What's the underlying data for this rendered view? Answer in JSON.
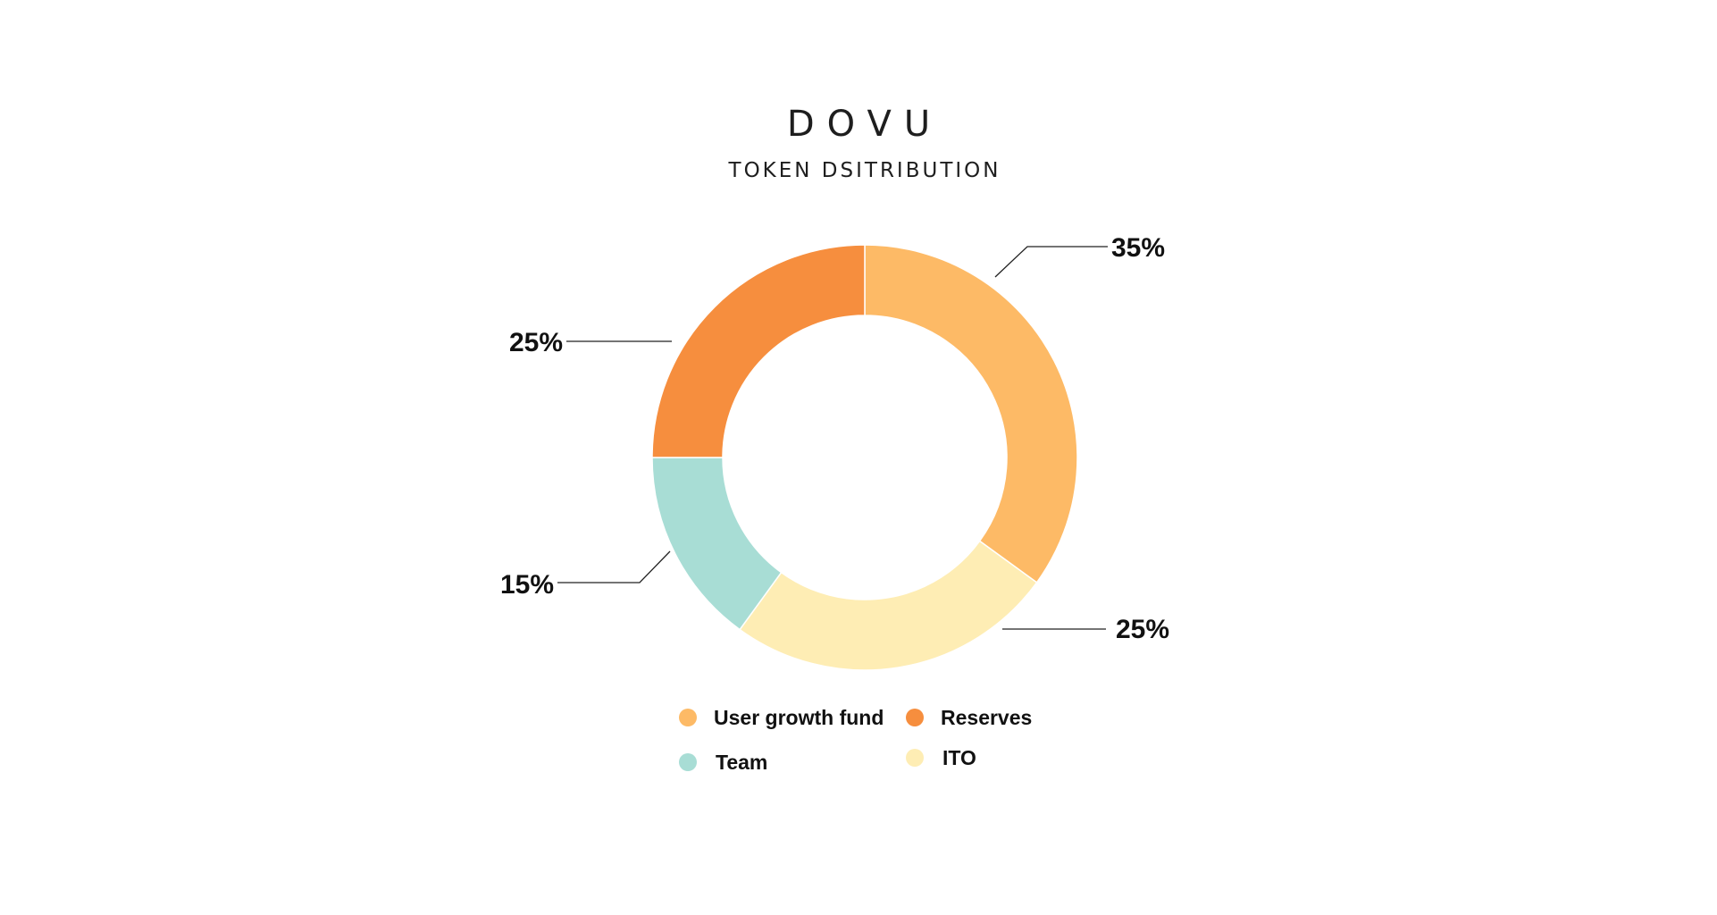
{
  "logo": {
    "text": "DOVU"
  },
  "chart_data": {
    "type": "pie",
    "subtype": "donut",
    "title": "TOKEN DSITRIBUTION",
    "categories": [
      "User growth fund",
      "ITO",
      "Team",
      "Reserves"
    ],
    "values": [
      35,
      25,
      15,
      25
    ],
    "value_labels": [
      "35%",
      "25%",
      "15%",
      "25%"
    ],
    "colors": [
      "#FDBA66",
      "#FEEDB4",
      "#A8DDD5",
      "#F68E3E"
    ],
    "legend": {
      "placement": "bottom",
      "entries": [
        {
          "label": "User growth fund",
          "color": "#FDBA66"
        },
        {
          "label": "Reserves",
          "color": "#F68E3E"
        },
        {
          "label": "Team",
          "color": "#A8DDD5"
        },
        {
          "label": "ITO",
          "color": "#FEEDB4"
        }
      ]
    }
  }
}
